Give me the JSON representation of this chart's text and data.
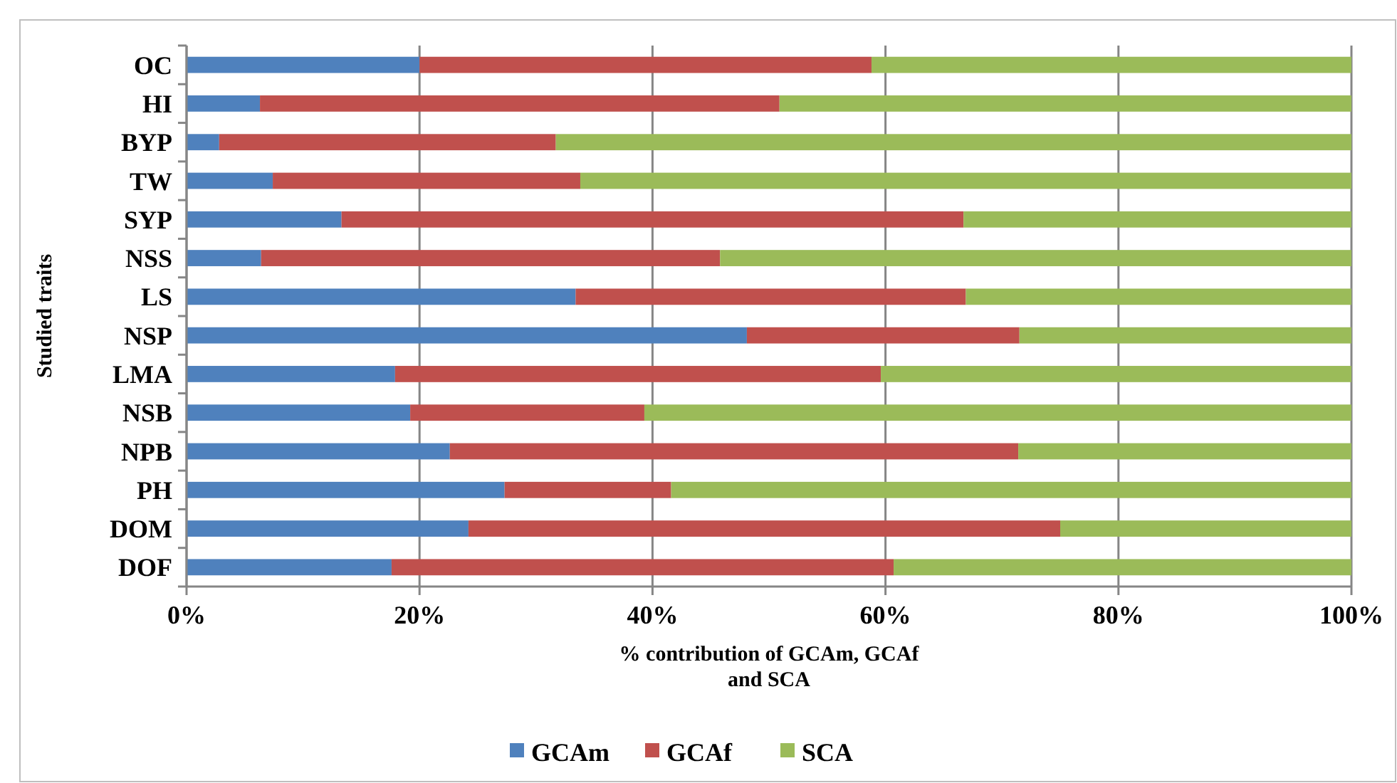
{
  "chart_data": {
    "type": "bar",
    "orientation": "horizontal",
    "stacked": true,
    "ylabel": "Studied traits",
    "xlabel": "% contribution of GCAm, GCAf and SCA",
    "categories": [
      "OC",
      "HI",
      "BYP",
      "TW",
      "SYP",
      "NSS",
      "LS",
      "NSP",
      "LMA",
      "NSB",
      "NPB",
      "PH",
      "DOM",
      "DOF"
    ],
    "series": [
      {
        "name": "GCAm",
        "color": "#4f81bd",
        "values": [
          20.0,
          6.3,
          2.8,
          7.4,
          13.3,
          6.4,
          33.4,
          48.1,
          17.9,
          19.2,
          22.6,
          27.3,
          24.2,
          17.6
        ]
      },
      {
        "name": "GCAf",
        "color": "#c0504d",
        "values": [
          38.8,
          44.6,
          28.9,
          26.4,
          53.4,
          39.4,
          33.5,
          23.4,
          41.7,
          20.1,
          48.8,
          14.3,
          50.8,
          43.1
        ]
      },
      {
        "name": "SCA",
        "color": "#9bbb59",
        "values": [
          41.2,
          49.1,
          68.3,
          66.2,
          33.3,
          54.2,
          33.1,
          28.5,
          40.4,
          60.7,
          28.6,
          58.4,
          25.0,
          39.3
        ]
      }
    ],
    "xlim": [
      0,
      100
    ],
    "xticks": [
      {
        "value": 0,
        "label": "0%"
      },
      {
        "value": 20,
        "label": "20%"
      },
      {
        "value": 40,
        "label": "40%"
      },
      {
        "value": 60,
        "label": "60%"
      },
      {
        "value": 80,
        "label": "80%"
      },
      {
        "value": 100,
        "label": "100%"
      }
    ],
    "grid": "x",
    "legend": "bottom"
  }
}
